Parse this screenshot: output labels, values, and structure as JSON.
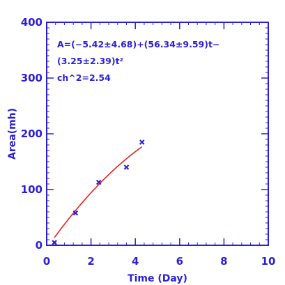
{
  "colors": {
    "axis": "#2b1fd6",
    "fit": "#e8201c",
    "points": "#2b1fd6",
    "background": "#ffffff"
  },
  "chart_data": {
    "type": "scatter",
    "xlabel": "Time (Day)",
    "ylabel": "Area(mh)",
    "xlim": [
      0,
      10
    ],
    "ylim": [
      0,
      400
    ],
    "x_ticks": [
      0,
      2,
      4,
      6,
      8,
      10
    ],
    "x_tick_labels": [
      "0",
      "2",
      "4",
      "6",
      "8",
      "10"
    ],
    "y_ticks": [
      0,
      100,
      200,
      300,
      400
    ],
    "y_tick_labels": [
      "0",
      "100",
      "200",
      "300",
      "400"
    ],
    "x_minor_step": 0.4,
    "y_minor_step": 10,
    "grid": false,
    "legend": "none",
    "series": [
      {
        "kind": "points",
        "marker": "x",
        "x": [
          0.35,
          1.3,
          2.35,
          3.6,
          4.3
        ],
        "y": [
          5,
          58,
          113,
          140,
          185
        ]
      },
      {
        "kind": "fit_curve",
        "x_range": [
          0.35,
          4.3
        ],
        "coefficients": [
          -5.42,
          56.34,
          -3.25
        ]
      }
    ],
    "annotations": [
      "A=(−5.42±4.68)+(56.34±9.59)t−",
      "(3.25±2.39)t²",
      "ch^2=2.54"
    ]
  }
}
